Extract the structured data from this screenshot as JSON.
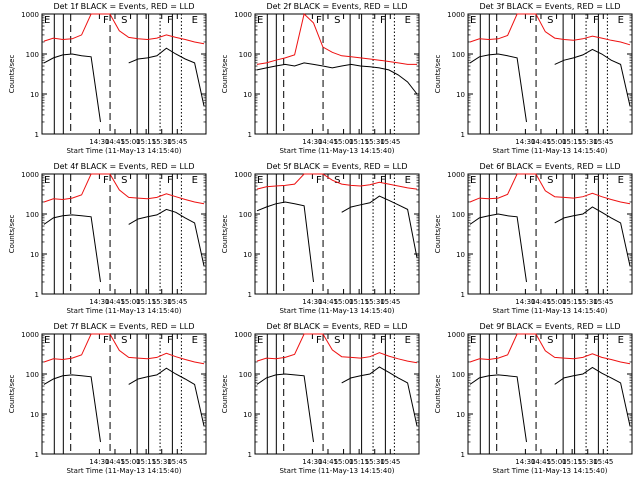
{
  "colors": {
    "events": "#000000",
    "lld": "#ee1111",
    "axes": "#000000"
  },
  "chart_data": [
    {
      "type": "line",
      "title": "Det 1f BLACK = Events, RED = LLD",
      "ylabel": "Counts/sec",
      "xlabel": "Start Time (11-May-13 14:15:40)",
      "yscale": "log",
      "ylim": [
        1,
        1000
      ],
      "ytick_labels": [
        "1",
        "10",
        "100",
        "1000"
      ],
      "xtick_labels": [
        "14:30",
        "14:45",
        "15:00",
        "15:15",
        "15:30",
        "15:45"
      ],
      "segment_labels": [
        "E",
        "F",
        "S",
        "F",
        "E"
      ],
      "series": [
        {
          "color": "#000000",
          "values": [
            60,
            80,
            95,
            100,
            90,
            85,
            2,
            null,
            null,
            60,
            75,
            80,
            90,
            140,
            100,
            75,
            60,
            5
          ]
        },
        {
          "color": "#ee1111",
          "values": [
            210,
            250,
            230,
            240,
            300,
            1000,
            1000,
            1000,
            380,
            260,
            240,
            230,
            250,
            300,
            260,
            230,
            200,
            180
          ]
        }
      ]
    },
    {
      "type": "line",
      "title": "Det 2f BLACK = Events, RED = LLD",
      "ylabel": "Counts/sec",
      "xlabel": "Start Time (11-May-13 14:15:40)",
      "yscale": "log",
      "ylim": [
        1,
        1000
      ],
      "ytick_labels": [
        "1",
        "10",
        "100",
        "1000"
      ],
      "xtick_labels": [
        "14:30",
        "14:45",
        "15:00",
        "15:15",
        "15:30",
        "15:45"
      ],
      "segment_labels": [
        "E",
        "F",
        "S",
        "F",
        "E"
      ],
      "series": [
        {
          "color": "#000000",
          "values": [
            40,
            45,
            50,
            55,
            50,
            60,
            55,
            50,
            45,
            50,
            55,
            50,
            48,
            45,
            40,
            30,
            20,
            10
          ]
        },
        {
          "color": "#ee1111",
          "values": [
            55,
            60,
            70,
            80,
            95,
            1000,
            600,
            150,
            110,
            90,
            85,
            80,
            75,
            70,
            65,
            60,
            55,
            55
          ]
        }
      ]
    },
    {
      "type": "line",
      "title": "Det 3f BLACK = Events, RED = LLD",
      "ylabel": "Counts/sec",
      "xlabel": "Start Time (11-May-13 14:15:40)",
      "yscale": "log",
      "ylim": [
        1,
        1000
      ],
      "ytick_labels": [
        "1",
        "10",
        "100",
        "1000"
      ],
      "xtick_labels": [
        "14:30",
        "14:45",
        "15:00",
        "15:15",
        "15:30",
        "15:45"
      ],
      "segment_labels": [
        "E",
        "F",
        "S",
        "F",
        "E"
      ],
      "series": [
        {
          "color": "#000000",
          "values": [
            60,
            85,
            95,
            100,
            90,
            80,
            2,
            null,
            null,
            55,
            70,
            80,
            95,
            130,
            100,
            70,
            55,
            5
          ]
        },
        {
          "color": "#ee1111",
          "values": [
            200,
            240,
            230,
            240,
            290,
            1000,
            1000,
            1000,
            360,
            250,
            230,
            220,
            240,
            280,
            250,
            220,
            200,
            170
          ]
        }
      ]
    },
    {
      "type": "line",
      "title": "Det 4f BLACK = Events, RED = LLD",
      "ylabel": "Counts/sec",
      "xlabel": "Start Time (11-May-13 14:15:40)",
      "yscale": "log",
      "ylim": [
        1,
        1000
      ],
      "ytick_labels": [
        "1",
        "10",
        "100",
        "1000"
      ],
      "xtick_labels": [
        "14:30",
        "14:45",
        "15:00",
        "15:15",
        "15:30",
        "15:45"
      ],
      "segment_labels": [
        "E",
        "F",
        "S",
        "F",
        "E"
      ],
      "series": [
        {
          "color": "#000000",
          "values": [
            55,
            80,
            90,
            95,
            90,
            85,
            2,
            null,
            null,
            55,
            75,
            85,
            95,
            130,
            110,
            80,
            60,
            5
          ]
        },
        {
          "color": "#ee1111",
          "values": [
            200,
            240,
            230,
            250,
            300,
            1000,
            1000,
            1000,
            400,
            260,
            250,
            240,
            260,
            320,
            270,
            230,
            200,
            180
          ]
        }
      ]
    },
    {
      "type": "line",
      "title": "Det 5f BLACK = Events, RED = LLD",
      "ylabel": "Counts/sec",
      "xlabel": "Start Time (11-May-13 14:15:40)",
      "yscale": "log",
      "ylim": [
        1,
        1000
      ],
      "ytick_labels": [
        "1",
        "10",
        "100",
        "1000"
      ],
      "xtick_labels": [
        "14:30",
        "14:45",
        "15:00",
        "15:15",
        "15:30",
        "15:45"
      ],
      "segment_labels": [
        "E",
        "F",
        "S",
        "F",
        "E"
      ],
      "series": [
        {
          "color": "#000000",
          "values": [
            120,
            150,
            180,
            200,
            180,
            160,
            2,
            null,
            null,
            110,
            150,
            170,
            190,
            280,
            220,
            170,
            130,
            8
          ]
        },
        {
          "color": "#ee1111",
          "values": [
            420,
            480,
            500,
            520,
            560,
            1000,
            1000,
            1000,
            700,
            560,
            520,
            500,
            540,
            620,
            560,
            500,
            450,
            420
          ]
        }
      ]
    },
    {
      "type": "line",
      "title": "Det 6f BLACK = Events, RED = LLD",
      "ylabel": "Counts/sec",
      "xlabel": "Start Time (11-May-13 14:15:40)",
      "yscale": "log",
      "ylim": [
        1,
        1000
      ],
      "ytick_labels": [
        "1",
        "10",
        "100",
        "1000"
      ],
      "xtick_labels": [
        "14:30",
        "14:45",
        "15:00",
        "15:15",
        "15:30",
        "15:45"
      ],
      "segment_labels": [
        "E",
        "F",
        "S",
        "F",
        "E"
      ],
      "series": [
        {
          "color": "#000000",
          "values": [
            55,
            80,
            90,
            100,
            90,
            85,
            2,
            null,
            null,
            60,
            80,
            90,
            100,
            150,
            110,
            80,
            60,
            5
          ]
        },
        {
          "color": "#ee1111",
          "values": [
            200,
            250,
            240,
            250,
            310,
            1000,
            1000,
            1000,
            380,
            270,
            260,
            250,
            270,
            330,
            270,
            230,
            200,
            180
          ]
        }
      ]
    },
    {
      "type": "line",
      "title": "Det 7f BLACK = Events, RED = LLD",
      "ylabel": "Counts/sec",
      "xlabel": "Start Time (11-May-13 14:15:40)",
      "yscale": "log",
      "ylim": [
        1,
        1000
      ],
      "ytick_labels": [
        "1",
        "10",
        "100",
        "1000"
      ],
      "xtick_labels": [
        "14:30",
        "14:45",
        "15:00",
        "15:15",
        "15:30",
        "15:45"
      ],
      "segment_labels": [
        "E",
        "F",
        "S",
        "F",
        "E"
      ],
      "series": [
        {
          "color": "#000000",
          "values": [
            55,
            75,
            90,
            95,
            90,
            85,
            2,
            null,
            null,
            55,
            75,
            85,
            95,
            140,
            100,
            75,
            55,
            5
          ]
        },
        {
          "color": "#ee1111",
          "values": [
            200,
            240,
            230,
            250,
            300,
            1000,
            1000,
            1000,
            390,
            260,
            250,
            240,
            260,
            330,
            270,
            230,
            200,
            180
          ]
        }
      ]
    },
    {
      "type": "line",
      "title": "Det 8f BLACK = Events, RED = LLD",
      "ylabel": "Counts/sec",
      "xlabel": "Start Time (11-May-13 14:15:40)",
      "yscale": "log",
      "ylim": [
        1,
        1000
      ],
      "ytick_labels": [
        "1",
        "10",
        "100",
        "1000"
      ],
      "xtick_labels": [
        "14:30",
        "14:45",
        "15:00",
        "15:15",
        "15:30",
        "15:45"
      ],
      "segment_labels": [
        "E",
        "F",
        "S",
        "F",
        "E"
      ],
      "series": [
        {
          "color": "#000000",
          "values": [
            55,
            80,
            95,
            100,
            95,
            90,
            2,
            null,
            null,
            60,
            80,
            90,
            100,
            150,
            110,
            80,
            60,
            5
          ]
        },
        {
          "color": "#ee1111",
          "values": [
            210,
            250,
            240,
            260,
            310,
            1000,
            1000,
            1000,
            400,
            270,
            260,
            250,
            270,
            340,
            280,
            240,
            210,
            190
          ]
        }
      ]
    },
    {
      "type": "line",
      "title": "Det 9f BLACK = Events, RED = LLD",
      "ylabel": "Counts/sec",
      "xlabel": "Start Time (11-May-13 14:15:40)",
      "yscale": "log",
      "ylim": [
        1,
        1000
      ],
      "ytick_labels": [
        "1",
        "10",
        "100",
        "1000"
      ],
      "xtick_labels": [
        "14:30",
        "14:45",
        "15:00",
        "15:15",
        "15:30",
        "15:45"
      ],
      "segment_labels": [
        "E",
        "F",
        "S",
        "F",
        "E"
      ],
      "series": [
        {
          "color": "#000000",
          "values": [
            55,
            80,
            90,
            95,
            90,
            85,
            2,
            null,
            null,
            55,
            80,
            90,
            100,
            145,
            105,
            80,
            60,
            5
          ]
        },
        {
          "color": "#ee1111",
          "values": [
            200,
            240,
            230,
            250,
            300,
            1000,
            1000,
            1000,
            380,
            260,
            250,
            240,
            260,
            320,
            260,
            230,
            200,
            180
          ]
        }
      ]
    }
  ]
}
